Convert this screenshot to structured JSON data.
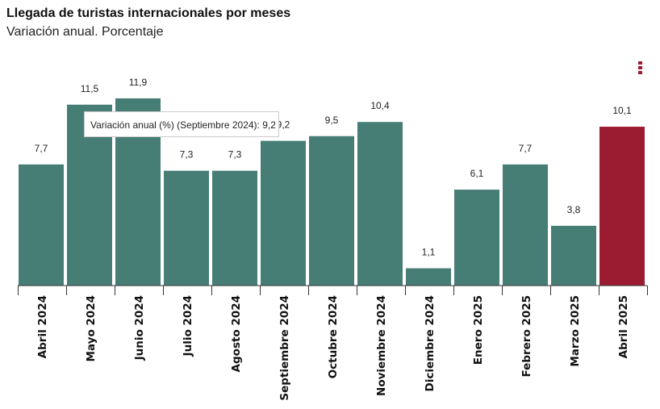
{
  "header": {
    "title": "Llegada de turistas internacionales por meses",
    "subtitle": "Variación anual. Porcentaje"
  },
  "tooltip": {
    "text": "Variación anual (%) (Septiembre 2024): 9,2"
  },
  "colors": {
    "bar": "#467d75",
    "highlight": "#9b1b30"
  },
  "chart_data": {
    "type": "bar",
    "title": "Llegada de turistas internacionales por meses",
    "subtitle": "Variación anual. Porcentaje",
    "categories": [
      "Abril 2024",
      "Mayo 2024",
      "Junio 2024",
      "Julio 2024",
      "Agosto 2024",
      "Septiembre 2024",
      "Octubre 2024",
      "Noviembre 2024",
      "Diciembre 2024",
      "Enero 2025",
      "Febrero 2025",
      "Marzo 2025",
      "Abril 2025"
    ],
    "values": [
      7.7,
      11.5,
      11.9,
      7.3,
      7.3,
      9.2,
      9.5,
      10.4,
      1.1,
      6.1,
      7.7,
      3.8,
      10.1
    ],
    "labels": [
      "7,7",
      "11,5",
      "11,9",
      "7,3",
      "7,3",
      "9,2",
      "9,5",
      "10,4",
      "1,1",
      "6,1",
      "7,7",
      "3,8",
      "10,1"
    ],
    "highlight_index": 12,
    "ylim": [
      0,
      12
    ],
    "grid": false
  }
}
